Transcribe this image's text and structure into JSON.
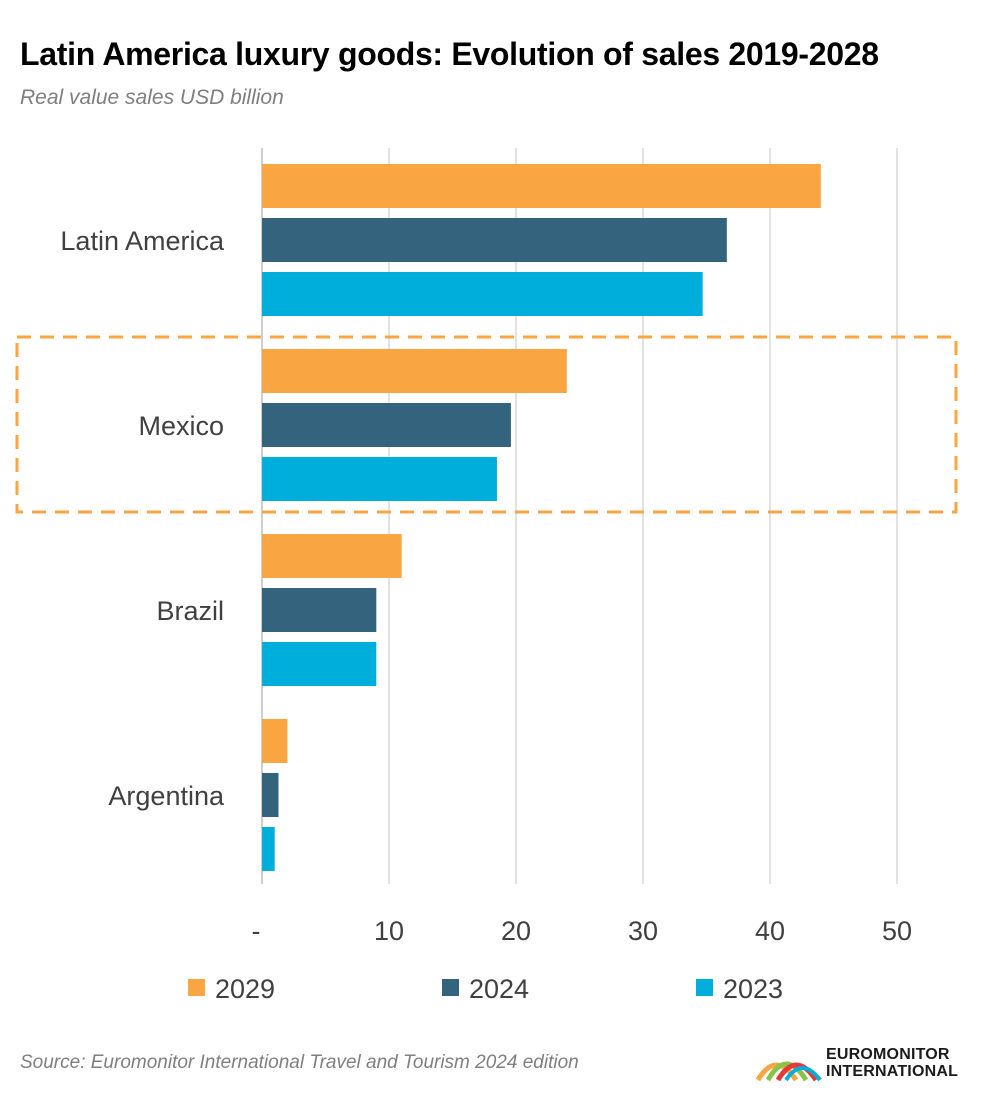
{
  "title": "Latin America luxury goods: Evolution of sales 2019-2028",
  "subtitle": "Real value sales USD billion",
  "source": "Source: Euromonitor International Travel and Tourism 2024 edition",
  "logo": {
    "line1": "EUROMONITOR",
    "line2": "INTERNATIONAL"
  },
  "colors": {
    "2029": "#F9A541",
    "2024": "#33637D",
    "2023": "#00AEDB",
    "highlight": "#F9A541",
    "grid": "#d9d9d9"
  },
  "chart_data": {
    "type": "bar",
    "orientation": "horizontal",
    "categories": [
      "Latin America",
      "Mexico",
      "Brazil",
      "Argentina"
    ],
    "series": [
      {
        "name": "2029",
        "values": [
          44,
          24,
          11,
          2
        ]
      },
      {
        "name": "2024",
        "values": [
          36.6,
          19.6,
          9,
          1.3
        ]
      },
      {
        "name": "2023",
        "values": [
          34.7,
          18.5,
          9,
          1
        ]
      }
    ],
    "xticks": [
      "-",
      "10",
      "20",
      "30",
      "40",
      "50"
    ],
    "xtick_values": [
      0,
      10,
      20,
      30,
      40,
      50
    ],
    "xlim": [
      0,
      55
    ],
    "grid": true,
    "legend": "bottom",
    "highlighted_category": "Mexico"
  }
}
